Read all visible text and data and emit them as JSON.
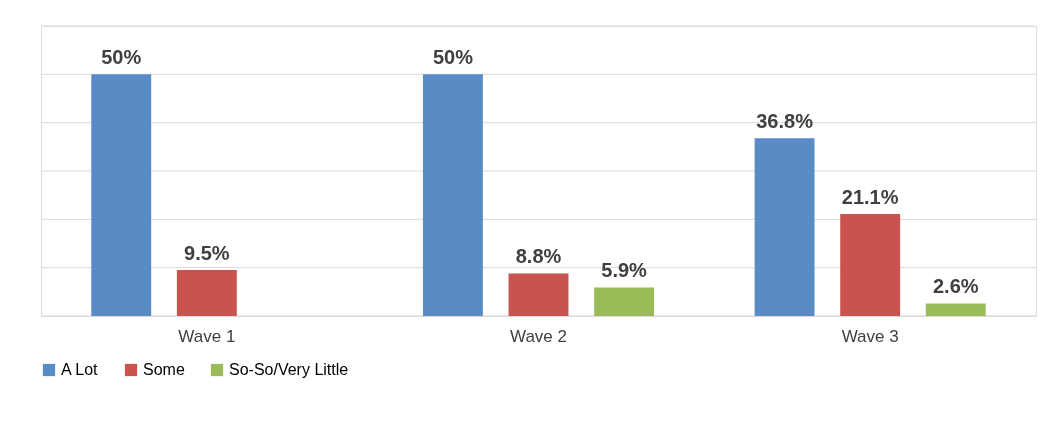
{
  "chart_data": {
    "type": "bar",
    "categories": [
      "Wave 1",
      "Wave 2",
      "Wave 3"
    ],
    "series": [
      {
        "name": "A Lot",
        "color": "#5b8bc5",
        "values": [
          50,
          50,
          36.8
        ],
        "value_labels": [
          "50%",
          "50%",
          "36.8%"
        ]
      },
      {
        "name": "Some",
        "color": "#c9534f",
        "values": [
          9.5,
          8.8,
          21.1
        ],
        "value_labels": [
          "9.5%",
          "8.8%",
          "21.1%"
        ]
      },
      {
        "name": "So-So/Very Little",
        "color": "#9bbb59",
        "values": [
          null,
          5.9,
          2.6
        ],
        "value_labels": [
          null,
          "5.9%",
          "2.6%"
        ]
      }
    ],
    "ylim": [
      0,
      60
    ],
    "yticks": [
      {
        "value": 0,
        "label": null
      },
      {
        "value": 10,
        "label": null
      },
      {
        "value": 20,
        "label": null
      },
      {
        "value": 30,
        "label": null
      },
      {
        "value": 40,
        "label": null
      },
      {
        "value": 50,
        "label": null
      },
      {
        "value": 60,
        "label": null
      }
    ],
    "grid": "y",
    "legend": "bottom",
    "tick_labels": "x"
  }
}
